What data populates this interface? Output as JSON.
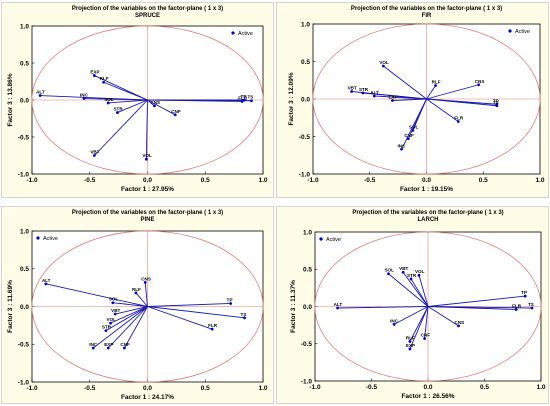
{
  "colors": {
    "arrow": "#1a1aaa",
    "circle": "#e08080",
    "point": "#0000cc",
    "frame": "#fffde8"
  },
  "chart_data": [
    {
      "type": "scatter",
      "title": "Projection of the variables on the factor-plane (  1 x   3)",
      "subtitle": "SPRUCE",
      "xlabel": "Factor 1 : 27.95%",
      "ylabel": "Factor 3 : 13.86%",
      "xlim": [
        -1,
        1
      ],
      "ylim": [
        -1,
        1
      ],
      "xticks": [
        "-1.0",
        "-0.5",
        "0.0",
        "0.5",
        "1.0"
      ],
      "yticks": [
        "-1.0",
        "-0.5",
        "0.0",
        "0.5",
        "1.0"
      ],
      "legend": "Active",
      "legend_position": "top-right",
      "points": [
        {
          "label": "ALT",
          "x": -0.93,
          "y": 0.06
        },
        {
          "label": "INC",
          "x": -0.55,
          "y": 0.02
        },
        {
          "label": "EXP",
          "x": -0.46,
          "y": 0.33
        },
        {
          "label": "RLF",
          "x": -0.38,
          "y": 0.24
        },
        {
          "label": "SOL",
          "x": -0.34,
          "y": -0.04
        },
        {
          "label": "STR",
          "x": -0.26,
          "y": -0.17
        },
        {
          "label": "CNS",
          "x": 0.06,
          "y": -0.08
        },
        {
          "label": "CNF",
          "x": 0.24,
          "y": -0.2
        },
        {
          "label": "FLR",
          "x": 0.82,
          "y": -0.02
        },
        {
          "label": "TS",
          "x": 0.9,
          "y": -0.01
        },
        {
          "label": "TP",
          "x": 0.84,
          "y": 0.0
        },
        {
          "label": "VBT",
          "x": -0.46,
          "y": -0.75
        },
        {
          "label": "VOL",
          "x": -0.01,
          "y": -0.8
        }
      ]
    },
    {
      "type": "scatter",
      "title": "Projection of the variables on the factor-plane (  1 x   3)",
      "subtitle": "FIR",
      "xlabel": "Factor 1 : 19.15%",
      "ylabel": "Factor 3 : 12.09%",
      "xlim": [
        -1,
        1
      ],
      "ylim": [
        -1,
        1
      ],
      "xticks": [
        "-1.0",
        "-0.5",
        "0.0",
        "0.5",
        "1.0"
      ],
      "yticks": [
        "-1.0",
        "-0.5",
        "0.0",
        "0.5",
        "1.0"
      ],
      "legend": "Active",
      "legend_position": "top-right",
      "points": [
        {
          "label": "VOL",
          "x": -0.38,
          "y": 0.44
        },
        {
          "label": "RLF",
          "x": 0.08,
          "y": 0.18
        },
        {
          "label": "CNS",
          "x": 0.46,
          "y": 0.19
        },
        {
          "label": "VBT",
          "x": -0.66,
          "y": 0.1
        },
        {
          "label": "STR",
          "x": -0.56,
          "y": 0.08
        },
        {
          "label": "ALT",
          "x": -0.46,
          "y": 0.04
        },
        {
          "label": "EXP",
          "x": -0.3,
          "y": -0.02
        },
        {
          "label": "TP",
          "x": 0.62,
          "y": -0.07
        },
        {
          "label": "TS",
          "x": 0.62,
          "y": -0.09
        },
        {
          "label": "FLR",
          "x": 0.28,
          "y": -0.3
        },
        {
          "label": "SOL",
          "x": -0.12,
          "y": -0.42
        },
        {
          "label": "CNF",
          "x": -0.16,
          "y": -0.53
        },
        {
          "label": "INC",
          "x": -0.22,
          "y": -0.67
        }
      ]
    },
    {
      "type": "scatter",
      "title": "Projection of the variables on the factor-plane (  1 x   3)",
      "subtitle": "PINE",
      "xlabel": "Factor 1 : 24.17%",
      "ylabel": "Factor 3 : 11.69%",
      "xlim": [
        -1,
        1
      ],
      "ylim": [
        -1,
        1
      ],
      "xticks": [
        "-1.0",
        "-0.5",
        "0.0",
        "0.5",
        "1.0"
      ],
      "yticks": [
        "-1.0",
        "-0.5",
        "0.0",
        "0.5",
        "1.0"
      ],
      "legend": "Active",
      "legend_position": "top-left",
      "points": [
        {
          "label": "ALT",
          "x": -0.88,
          "y": 0.3
        },
        {
          "label": "CNS",
          "x": -0.02,
          "y": 0.32
        },
        {
          "label": "RLF",
          "x": -0.1,
          "y": 0.18
        },
        {
          "label": "SOL",
          "x": -0.3,
          "y": 0.05
        },
        {
          "label": "TP",
          "x": 0.72,
          "y": 0.04
        },
        {
          "label": "TS",
          "x": 0.84,
          "y": -0.15
        },
        {
          "label": "FLR",
          "x": 0.56,
          "y": -0.3
        },
        {
          "label": "VBT",
          "x": -0.28,
          "y": -0.1
        },
        {
          "label": "VOL",
          "x": -0.32,
          "y": -0.22
        },
        {
          "label": "STR",
          "x": -0.36,
          "y": -0.32
        },
        {
          "label": "INC",
          "x": -0.47,
          "y": -0.55
        },
        {
          "label": "EXP",
          "x": -0.34,
          "y": -0.55
        },
        {
          "label": "CNF",
          "x": -0.2,
          "y": -0.55
        }
      ]
    },
    {
      "type": "scatter",
      "title": "Projection of the variables on the factor-plane (  1 x   3)",
      "subtitle": "LARCH",
      "xlabel": "Factor 1 : 26.56%",
      "ylabel": "Factor 3 : 11.37%",
      "xlim": [
        -1,
        1
      ],
      "ylim": [
        -1,
        1
      ],
      "xticks": [
        "-1.0",
        "-0.5",
        "0.0",
        "0.5",
        "1.0"
      ],
      "yticks": [
        "-1.0",
        "-0.5",
        "0.0",
        "0.5",
        "1.0"
      ],
      "legend": "Active",
      "legend_position": "top-left",
      "points": [
        {
          "label": "SOL",
          "x": -0.35,
          "y": 0.44
        },
        {
          "label": "VBT",
          "x": -0.22,
          "y": 0.46
        },
        {
          "label": "STR",
          "x": -0.15,
          "y": 0.37
        },
        {
          "label": "VOL",
          "x": -0.08,
          "y": 0.42
        },
        {
          "label": "TP",
          "x": 0.86,
          "y": 0.14
        },
        {
          "label": "TS",
          "x": 0.92,
          "y": -0.02
        },
        {
          "label": "FLR",
          "x": 0.78,
          "y": -0.04
        },
        {
          "label": "ALT",
          "x": -0.8,
          "y": -0.02
        },
        {
          "label": "INC",
          "x": -0.3,
          "y": -0.24
        },
        {
          "label": "CNS",
          "x": 0.27,
          "y": -0.26
        },
        {
          "label": "CNF",
          "x": -0.03,
          "y": -0.43
        },
        {
          "label": "RLF",
          "x": -0.16,
          "y": -0.47
        },
        {
          "label": "EXP",
          "x": -0.16,
          "y": -0.57
        }
      ]
    }
  ]
}
